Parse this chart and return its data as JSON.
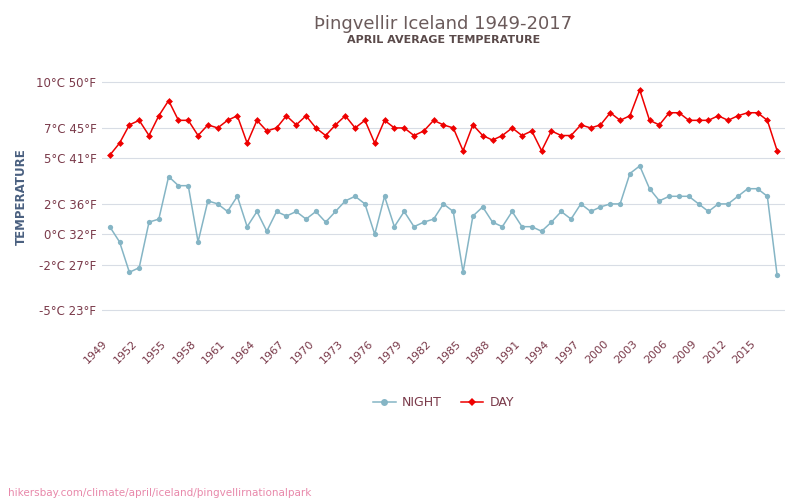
{
  "title": "Þingvellir Iceland 1949-2017",
  "subtitle": "APRIL AVERAGE TEMPERATURE",
  "ylabel": "TEMPERATURE",
  "watermark": "hikersbay.com/climate/april/iceland/þingvellirnationalpark",
  "years": [
    1949,
    1950,
    1951,
    1952,
    1953,
    1954,
    1955,
    1956,
    1957,
    1958,
    1959,
    1960,
    1961,
    1962,
    1963,
    1964,
    1965,
    1966,
    1967,
    1968,
    1969,
    1970,
    1971,
    1972,
    1973,
    1974,
    1975,
    1976,
    1977,
    1978,
    1979,
    1980,
    1981,
    1982,
    1983,
    1984,
    1985,
    1986,
    1987,
    1988,
    1989,
    1990,
    1991,
    1992,
    1993,
    1994,
    1995,
    1996,
    1997,
    1998,
    1999,
    2000,
    2001,
    2002,
    2003,
    2004,
    2005,
    2006,
    2007,
    2008,
    2009,
    2010,
    2011,
    2012,
    2013,
    2014,
    2015,
    2016,
    2017
  ],
  "day_temps": [
    5.2,
    6.0,
    7.2,
    7.5,
    6.5,
    7.8,
    8.8,
    7.5,
    7.5,
    6.5,
    7.2,
    7.0,
    7.5,
    7.8,
    6.0,
    7.5,
    6.8,
    7.0,
    7.8,
    7.2,
    7.8,
    7.0,
    6.5,
    7.2,
    7.8,
    7.0,
    7.5,
    6.0,
    7.5,
    7.0,
    7.0,
    6.5,
    6.8,
    7.5,
    7.2,
    7.0,
    5.5,
    7.2,
    6.5,
    6.2,
    6.5,
    7.0,
    6.5,
    6.8,
    5.5,
    6.8,
    6.5,
    6.5,
    7.2,
    7.0,
    7.2,
    8.0,
    7.5,
    7.8,
    9.5,
    7.5,
    7.2,
    8.0,
    8.0,
    7.5,
    7.5,
    7.5,
    7.8,
    7.5,
    7.8,
    8.0,
    8.0,
    7.5,
    5.5
  ],
  "night_temps": [
    0.5,
    -0.5,
    -2.5,
    -2.2,
    0.8,
    1.0,
    3.8,
    3.2,
    3.2,
    -0.5,
    2.2,
    2.0,
    1.5,
    2.5,
    0.5,
    1.5,
    0.2,
    1.5,
    1.2,
    1.5,
    1.0,
    1.5,
    0.8,
    1.5,
    2.2,
    2.5,
    2.0,
    0.0,
    2.5,
    0.5,
    1.5,
    0.5,
    0.8,
    1.0,
    2.0,
    1.5,
    -2.5,
    1.2,
    1.8,
    0.8,
    0.5,
    1.5,
    0.5,
    0.5,
    0.2,
    0.8,
    1.5,
    1.0,
    2.0,
    1.5,
    1.8,
    2.0,
    2.0,
    4.0,
    4.5,
    3.0,
    2.2,
    2.5,
    2.5,
    2.5,
    2.0,
    1.5,
    2.0,
    2.0,
    2.5,
    3.0,
    3.0,
    2.5,
    -2.7
  ],
  "day_color": "#ee0000",
  "night_color": "#85b5c5",
  "title_color": "#6b5b5b",
  "subtitle_color": "#5a4a4a",
  "axis_label_color": "#4a6080",
  "tick_label_color": "#7a3a4a",
  "grid_color": "#d8dde5",
  "watermark_color": "#e888aa",
  "yticks_c": [
    10,
    7,
    5,
    2,
    0,
    -2,
    -5
  ],
  "yticks_f": [
    50,
    45,
    41,
    36,
    32,
    27,
    23
  ],
  "xtick_years": [
    1949,
    1952,
    1955,
    1958,
    1961,
    1964,
    1967,
    1970,
    1973,
    1976,
    1979,
    1982,
    1985,
    1988,
    1991,
    1994,
    1997,
    2000,
    2003,
    2006,
    2009,
    2012,
    2015
  ],
  "ylim": [
    -6.5,
    11.5
  ],
  "xlim": [
    1948.2,
    2017.8
  ],
  "background_color": "#ffffff"
}
